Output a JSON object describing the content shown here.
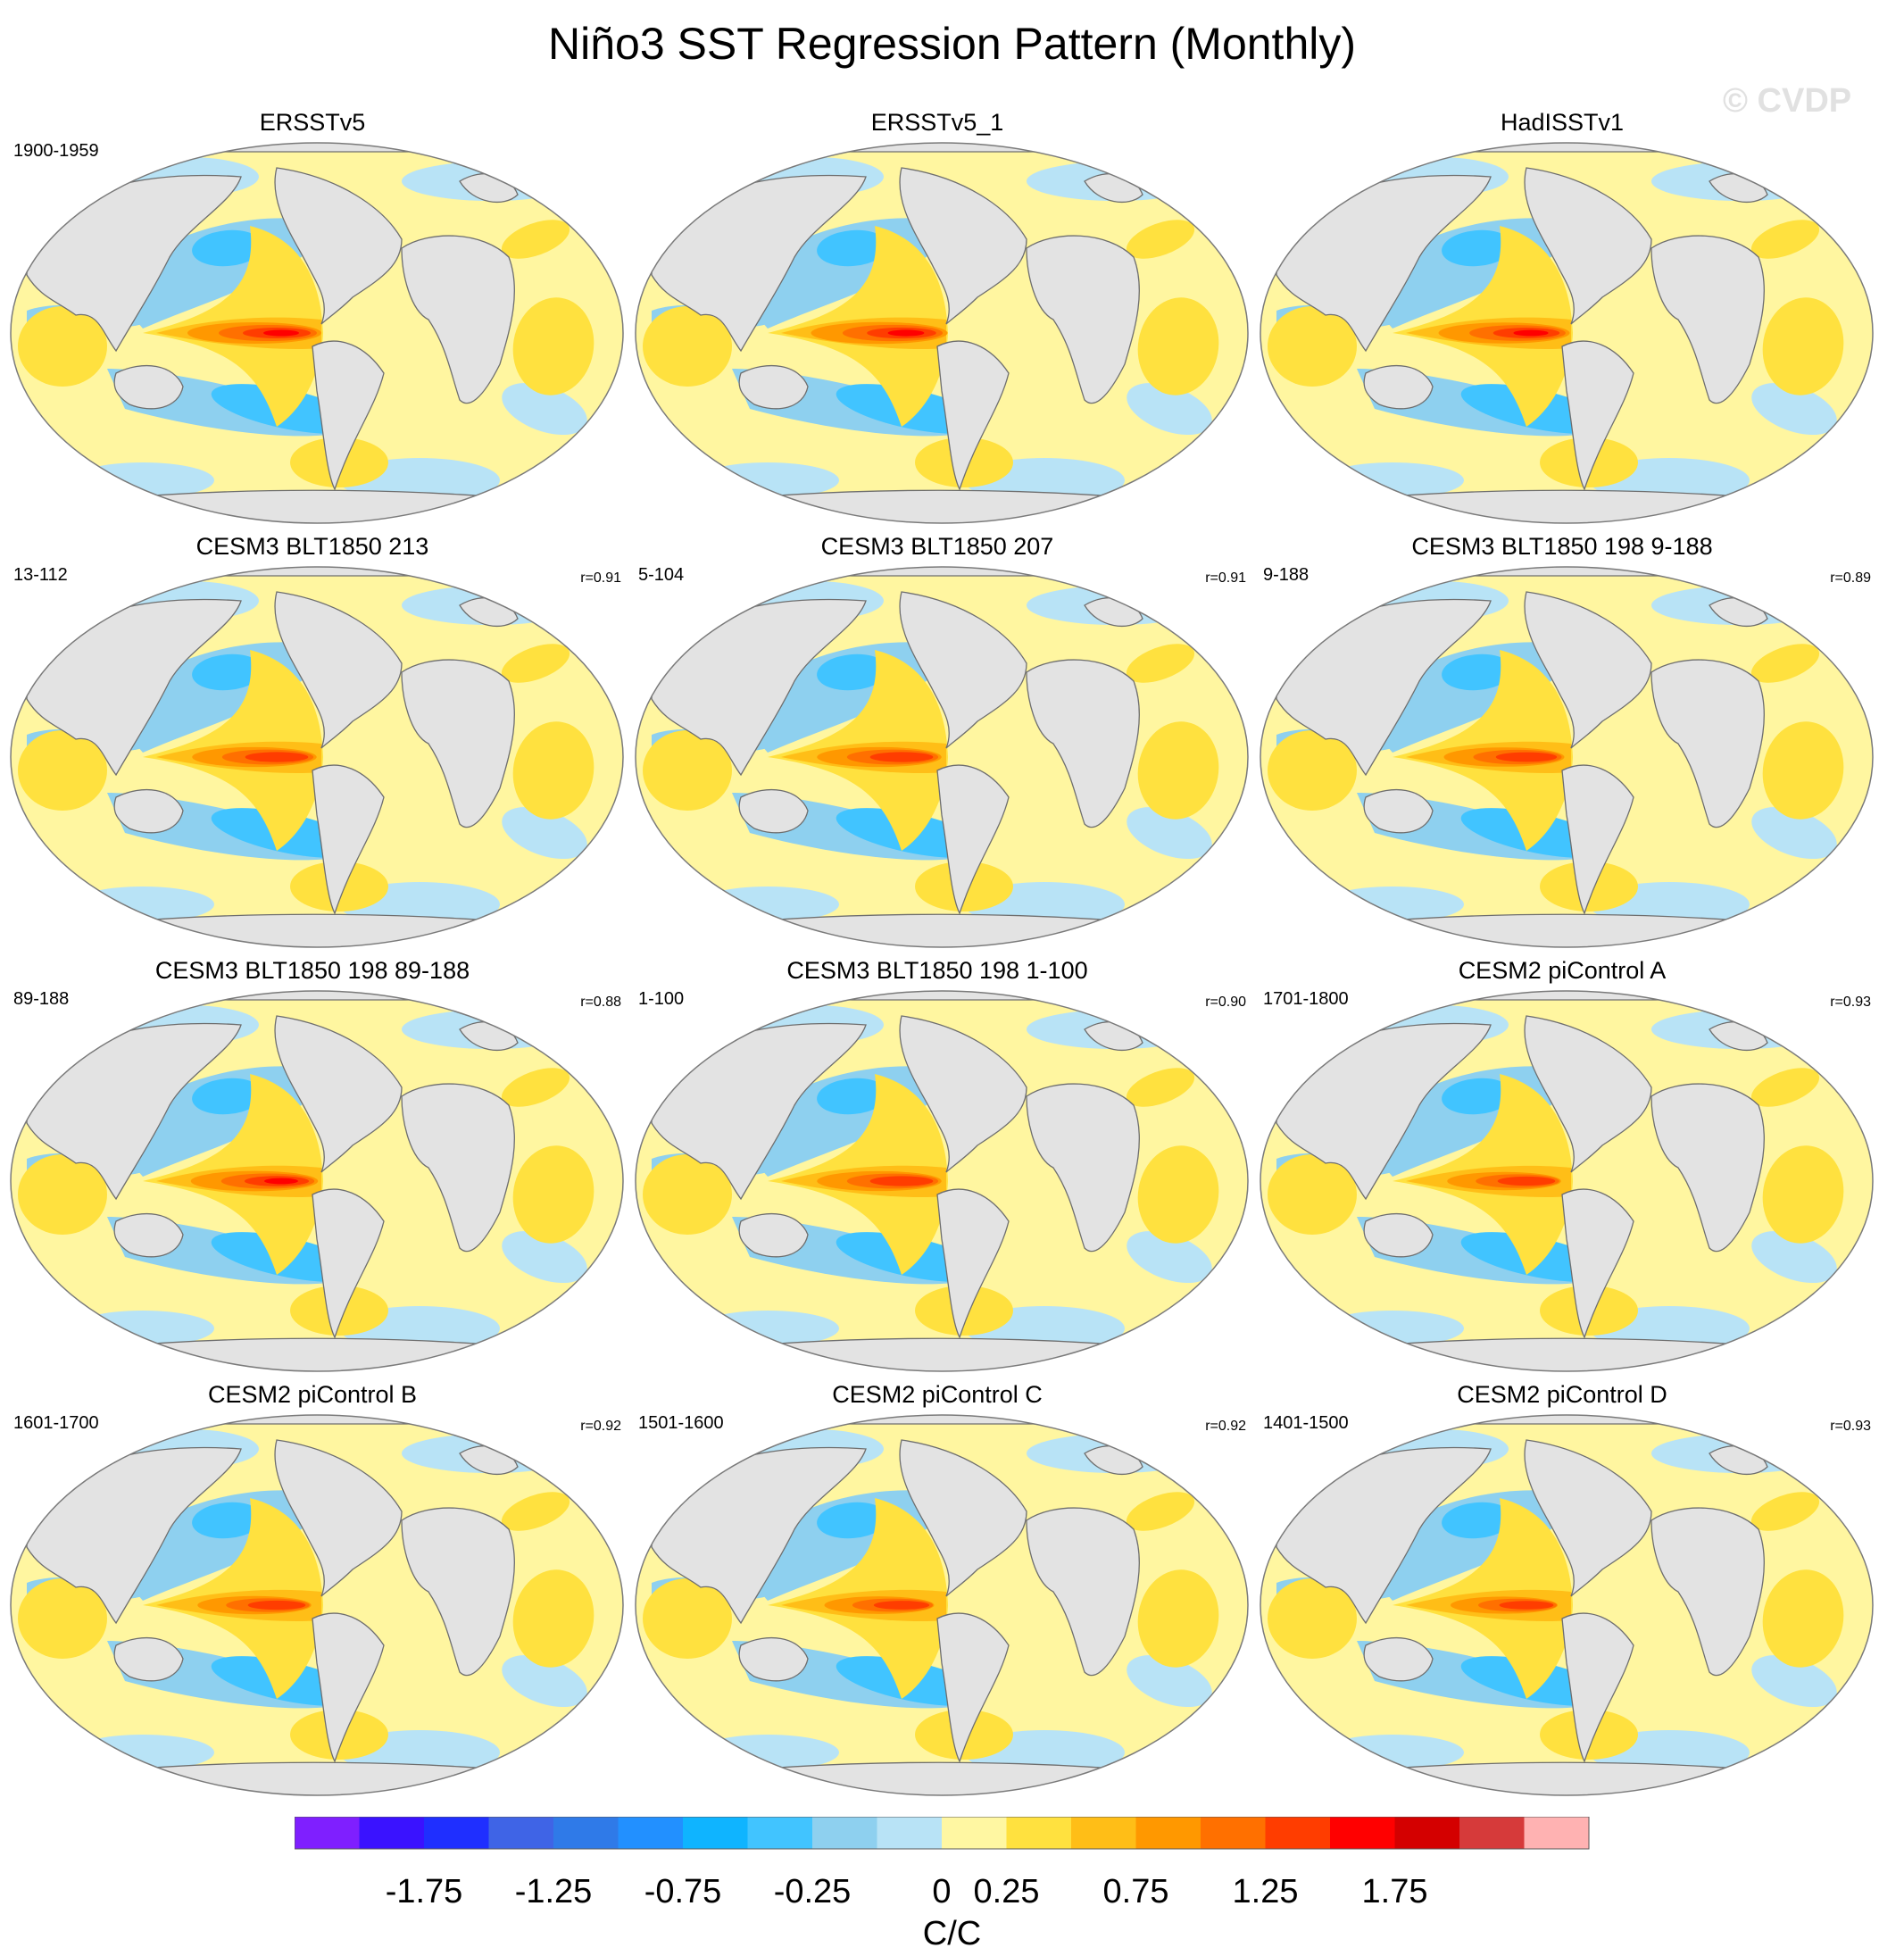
{
  "title": "Niño3 SST Regression Pattern (Monthly)",
  "watermark": "© CVDP",
  "colors": {
    "land": "#e3e3e3",
    "coast": "#6e6e6e",
    "ocean_background": "#fff6a0"
  },
  "panels": [
    {
      "title": "ERSSTv5",
      "years": "1900-1959",
      "corr": "",
      "strength": 1.0
    },
    {
      "title": "ERSSTv5_1",
      "years": "",
      "corr": "",
      "strength": 1.02
    },
    {
      "title": "HadISSTv1",
      "years": "",
      "corr": "",
      "strength": 0.98
    },
    {
      "title": "CESM3 BLT1850 213",
      "years": "13-112",
      "corr": "r=0.91",
      "strength": 0.93
    },
    {
      "title": "CESM3 BLT1850 207",
      "years": "5-104",
      "corr": "r=0.91",
      "strength": 0.93
    },
    {
      "title": "CESM3 BLT1850 198 9-188",
      "years": "9-188",
      "corr": "r=0.89",
      "strength": 0.9
    },
    {
      "title": "CESM3 BLT1850 198 89-188",
      "years": "89-188",
      "corr": "r=0.88",
      "strength": 0.95
    },
    {
      "title": "CESM3 BLT1850 198 1-100",
      "years": "1-100",
      "corr": "r=0.90",
      "strength": 0.93
    },
    {
      "title": "CESM2 piControl A",
      "years": "1701-1800",
      "corr": "r=0.93",
      "strength": 0.85
    },
    {
      "title": "CESM2 piControl B",
      "years": "1601-1700",
      "corr": "r=0.92",
      "strength": 0.85
    },
    {
      "title": "CESM2 piControl C",
      "years": "1501-1600",
      "corr": "r=0.92",
      "strength": 0.82
    },
    {
      "title": "CESM2 piControl D",
      "years": "1401-1500",
      "corr": "r=0.93",
      "strength": 0.8
    }
  ],
  "colorbar": {
    "colors": [
      "#7f1fff",
      "#3a12ff",
      "#1f2fff",
      "#3f64e6",
      "#2f7ae8",
      "#2290ff",
      "#0fb4ff",
      "#41c4ff",
      "#8ed0ef",
      "#b8e3f6",
      "#fff7a2",
      "#ffe13f",
      "#ffbe17",
      "#ff9800",
      "#ff7000",
      "#ff3d00",
      "#ff0000",
      "#d40000",
      "#d63a3a",
      "#ffb2b2"
    ],
    "tick_labels": [
      "-1.75",
      "-1.25",
      "-0.75",
      "-0.25",
      "0",
      "0.25",
      "0.75",
      "1.25",
      "1.75"
    ],
    "units": "C/C"
  }
}
